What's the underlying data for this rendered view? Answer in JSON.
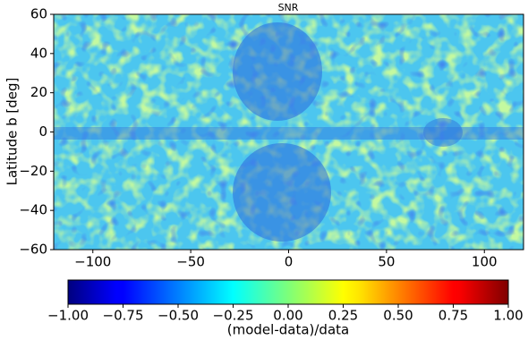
{
  "chart_data": {
    "type": "heatmap",
    "title": "SNR",
    "ylabel": "Latitude b [deg]",
    "xlim": [
      -120,
      120
    ],
    "ylim": [
      -60,
      60
    ],
    "xticks": [
      {
        "value": -100,
        "label": "−100"
      },
      {
        "value": -50,
        "label": "−50"
      },
      0,
      50,
      100
    ],
    "yticks": [
      {
        "value": -60,
        "label": "−60"
      },
      {
        "value": -40,
        "label": "−40"
      },
      {
        "value": -20,
        "label": "−20"
      },
      0,
      20,
      40,
      60
    ],
    "colorbar": {
      "colormap": "jet",
      "lim": [
        -1,
        1
      ],
      "label": "(model-data)/data",
      "ticks": [
        {
          "value": -1,
          "label": "−1.00"
        },
        {
          "value": -0.75,
          "label": "−0.75"
        },
        {
          "value": -0.5,
          "label": "−0.50"
        },
        {
          "value": -0.25,
          "label": "−0.25"
        },
        {
          "value": 0,
          "label": "0.00"
        },
        {
          "value": 0.25,
          "label": "0.25"
        },
        {
          "value": 0.5,
          "label": "0.50"
        },
        {
          "value": 0.75,
          "label": "0.75"
        },
        {
          "value": 1,
          "label": "1.00"
        }
      ]
    }
  }
}
